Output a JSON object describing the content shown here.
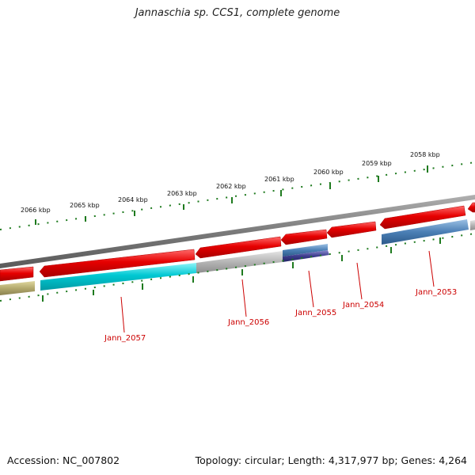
{
  "title": "Jannaschia sp. CCS1, complete genome",
  "accession": "Accession: NC_007802",
  "topology": "Topology: circular; Length: 4,317,977 bp; Genes: 4,264",
  "kbp_labels": [
    "2066 kbp",
    "2065 kbp",
    "2064 kbp",
    "2063 kbp",
    "2062 kbp",
    "2061 kbp",
    "2060 kbp",
    "2059 kbp",
    "2058 kbp"
  ],
  "genes": [
    "Jann_2057",
    "Jann_2056",
    "Jann_2055",
    "Jann_2054",
    "Jann_2053"
  ],
  "colors": {
    "forward": "#e60000",
    "backbone": "#808080",
    "cyan": "#00c8d2",
    "grey": "#b4b4b4",
    "steel": "#4b7fb5",
    "navy": "#3c3c8c",
    "olive": "#b4aa6e",
    "tick": "#1e7a1e",
    "label": "#cc0000"
  }
}
